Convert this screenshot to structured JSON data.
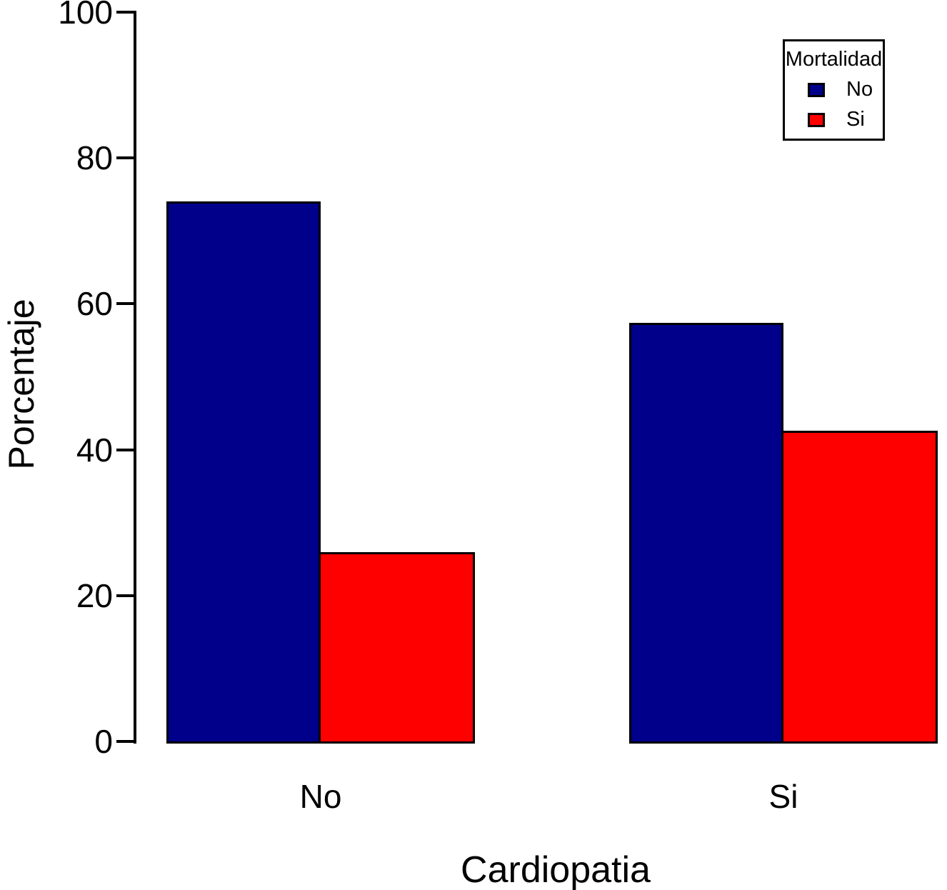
{
  "chart_data": {
    "type": "bar",
    "title": "",
    "xlabel": "Cardiopatia",
    "ylabel": "Porcentaje",
    "categories": [
      "No",
      "Si"
    ],
    "series": [
      {
        "name": "No",
        "color": "#00008B",
        "values": [
          74,
          57.4
        ]
      },
      {
        "name": "Si",
        "color": "#FF0000",
        "values": [
          26,
          42.6
        ]
      }
    ],
    "ylim": [
      0,
      100
    ],
    "yticks": [
      0,
      20,
      40,
      60,
      80,
      100
    ],
    "grid": false,
    "legend_title": "Mortalidad",
    "legend_position": "top-right",
    "bar_border_color": "#000000",
    "axis_color": "#000000"
  }
}
